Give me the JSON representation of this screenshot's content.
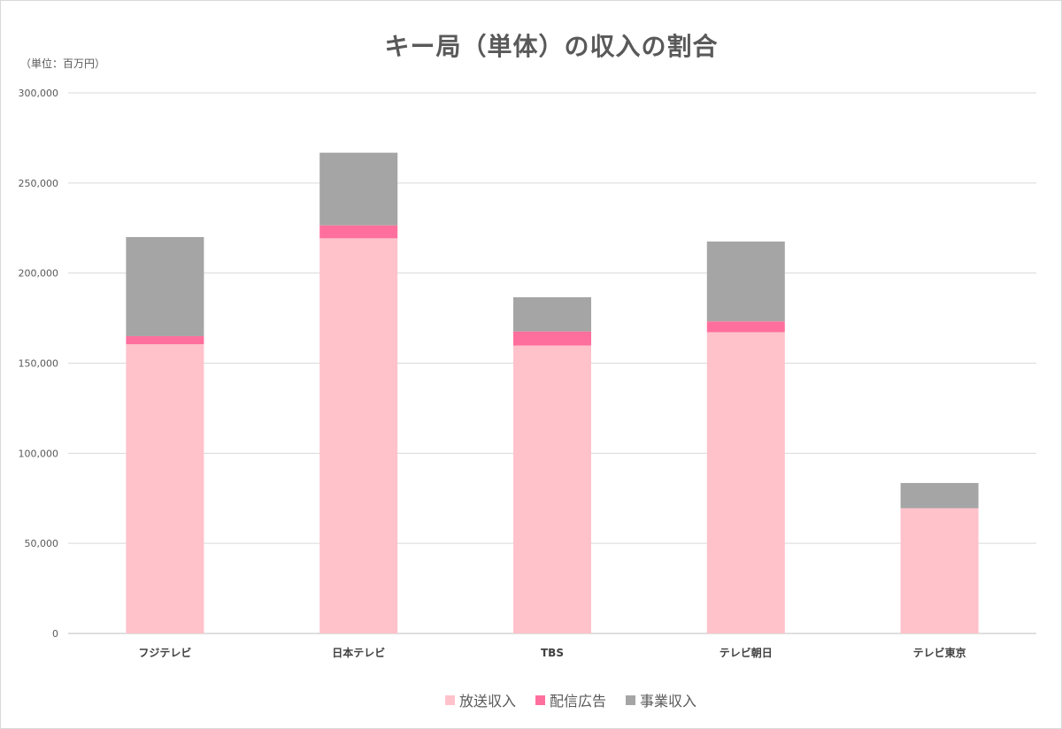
{
  "chart_data": {
    "type": "bar",
    "stacked": true,
    "title": "キー局（単体）の収入の割合",
    "unit_label": "（単位：百万円）",
    "categories": [
      "フジテレビ",
      "日本テレビ",
      "TBS",
      "テレビ朝日",
      "テレビ東京"
    ],
    "series": [
      {
        "name": "放送収入",
        "color": "#ffc2cb",
        "values": [
          160500,
          219300,
          159800,
          167200,
          69500
        ]
      },
      {
        "name": "配信広告",
        "color": "#ff6f9d",
        "values": [
          4500,
          7200,
          7800,
          6000,
          0
        ]
      },
      {
        "name": "事業収入",
        "color": "#a5a5a5",
        "values": [
          55000,
          40300,
          19000,
          44300,
          14000
        ]
      }
    ],
    "ylim": [
      0,
      300000
    ],
    "yticks": [
      "0",
      "50,000",
      "100,000",
      "150,000",
      "200,000",
      "250,000",
      "300,000"
    ],
    "grid": true,
    "legend_position": "bottom"
  }
}
